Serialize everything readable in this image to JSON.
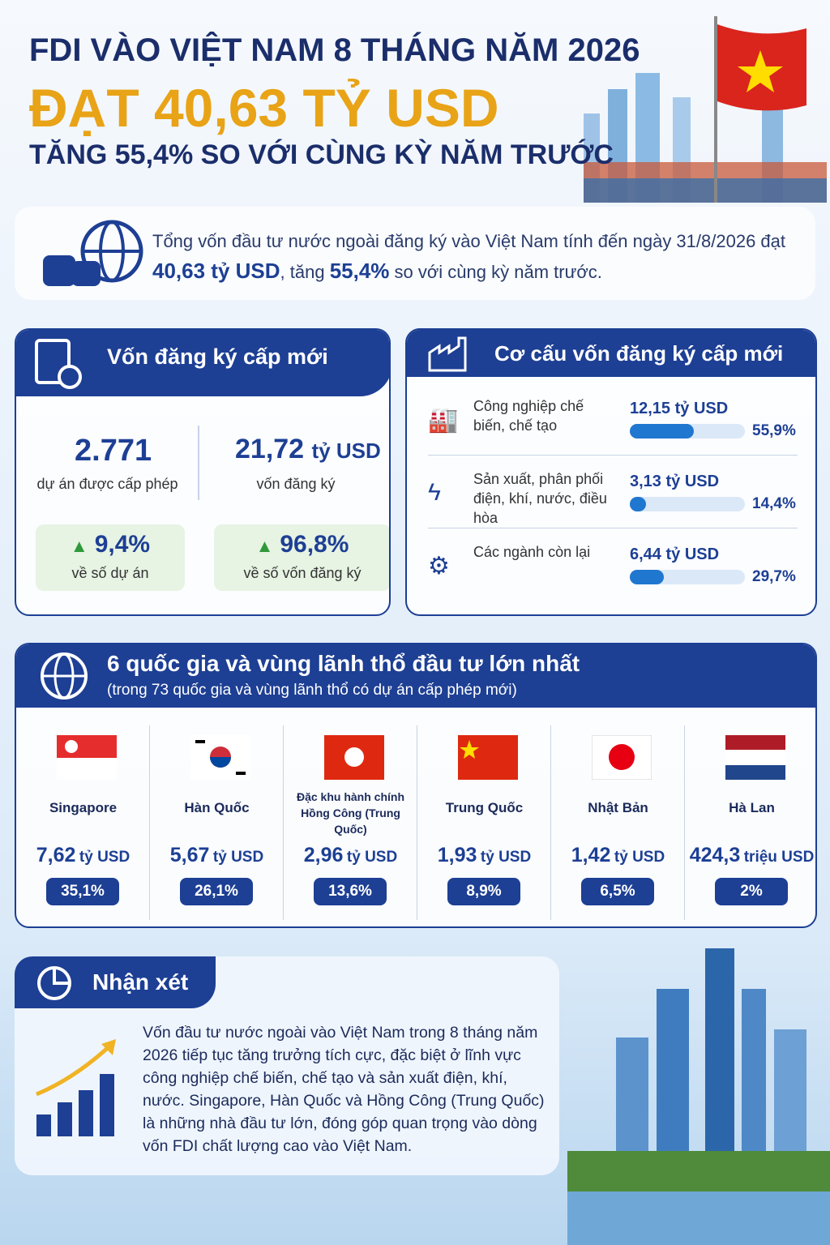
{
  "header": {
    "line1": "FDI VÀO VIỆT NAM 8 THÁNG NĂM 2026",
    "line2": "ĐẠT 40,63 TỶ USD",
    "line3": "TĂNG 55,4% SO VỚI CÙNG KỲ NĂM TRƯỚC"
  },
  "summary": {
    "text_before": "Tổng vốn đầu tư nước ngoài đăng ký vào Việt Nam tính đến ngày 31/8/2026 đạt ",
    "amount": "40,63 tỷ USD",
    "text_middle": ", tăng ",
    "growth": "55,4%",
    "text_after": " so với cùng kỳ năm trước."
  },
  "new_capital": {
    "title": "Vốn đăng ký cấp mới",
    "projects": "2.771",
    "projects_label": "dự án được cấp phép",
    "capital_value": "21,72",
    "capital_unit": "tỷ USD",
    "capital_label": "vốn đăng ký",
    "growth": [
      {
        "value": "9,4%",
        "label": "về số dự án"
      },
      {
        "value": "96,8%",
        "label": "về số vốn đăng ký"
      }
    ]
  },
  "structure": {
    "title": "Cơ cấu vốn đăng ký cấp mới",
    "sectors": [
      {
        "name": "Công nghiệp chế biến, chế tạo",
        "amount": "12,15 tỷ USD",
        "share": {
          "value": 55.9,
          "label": "55,9%"
        }
      },
      {
        "name": "Sản xuất, phân phối điện, khí, nước, điều hòa",
        "amount": "3,13 tỷ USD",
        "share": {
          "value": 14.4,
          "label": "14,4%"
        }
      },
      {
        "name": "Các ngành còn lại",
        "amount": "6,44 tỷ USD",
        "share": {
          "value": 29.7,
          "label": "29,7%"
        }
      }
    ]
  },
  "investors": {
    "title": "6 quốc gia và vùng lãnh thổ đầu tư lớn nhất",
    "subtitle": "(trong 73 quốc gia và vùng lãnh thổ có dự án cấp phép mới)",
    "countries": [
      {
        "name": "Singapore",
        "amount_value": "7,62",
        "amount_unit": "tỷ USD",
        "share": "35,1%"
      },
      {
        "name": "Hàn Quốc",
        "amount_value": "5,67",
        "amount_unit": "tỷ USD",
        "share": "26,1%"
      },
      {
        "name": "Đặc khu hành chính Hồng Công (Trung Quốc)",
        "amount_value": "2,96",
        "amount_unit": "tỷ USD",
        "share": "13,6%"
      },
      {
        "name": "Trung Quốc",
        "amount_value": "1,93",
        "amount_unit": "tỷ USD",
        "share": "8,9%"
      },
      {
        "name": "Nhật Bản",
        "amount_value": "1,42",
        "amount_unit": "tỷ USD",
        "share": "6,5%"
      },
      {
        "name": "Hà Lan",
        "amount_value": "424,3",
        "amount_unit": "triệu USD",
        "share": "2%"
      }
    ]
  },
  "comment": {
    "title": "Nhận xét",
    "text": "Vốn đầu tư nước ngoài vào Việt Nam trong 8 tháng năm 2026 tiếp tục tăng trưởng tích cực, đặc biệt ở lĩnh vực công nghiệp chế biến, chế tạo và sản xuất điện, khí, nước. Singapore, Hàn Quốc và Hồng Công (Trung Quốc) là những nhà đầu tư lớn, đóng góp quan trọng vào dòng vốn FDI chất lượng cao vào Việt Nam."
  }
}
